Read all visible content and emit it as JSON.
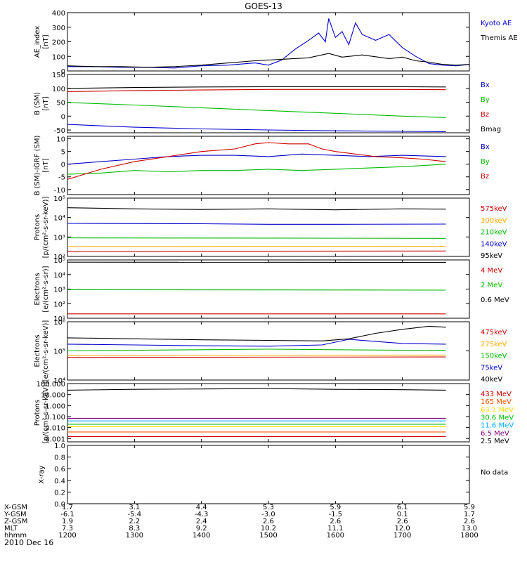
{
  "title": "GOES-13",
  "date": "2010 Dec 16",
  "x_ticks": [
    "1200",
    "1300",
    "1400",
    "1500",
    "1600",
    "1700",
    "1800"
  ],
  "x_range": [
    12.0,
    18.0
  ],
  "footer": {
    "rows": [
      {
        "label": "X-GSM",
        "values": [
          "1.7",
          "3.1",
          "4.4",
          "5.3",
          "5.9",
          "6.1",
          "5.9"
        ]
      },
      {
        "label": "Y-GSM",
        "values": [
          "-6.1",
          "-5.4",
          "-4.3",
          "-3.0",
          "-1.5",
          "0.1",
          "1.7"
        ]
      },
      {
        "label": "Z-GSM",
        "values": [
          "1.9",
          "2.2",
          "2.4",
          "2.6",
          "2.6",
          "2.6",
          "2.6"
        ]
      },
      {
        "label": "MLT",
        "values": [
          "7.3",
          "8.3",
          "9.2",
          "10.2",
          "11.1",
          "12.0",
          "13.0"
        ]
      },
      {
        "label": "hhmm",
        "values": [
          "1200",
          "1300",
          "1400",
          "1500",
          "1600",
          "1700",
          "1800"
        ]
      }
    ]
  },
  "panels": [
    {
      "ylabel": [
        "AE_index",
        "[nT]"
      ],
      "yscale": "linear",
      "ylim": [
        0,
        400
      ],
      "yticks": [
        "0",
        "100",
        "200",
        "300",
        "400"
      ],
      "legend": [
        {
          "text": "Kyoto AE",
          "color": "#0000cc"
        },
        {
          "text": "Themis AE",
          "color": "#000000"
        }
      ]
    },
    {
      "ylabel": [
        "B (SM)",
        "[nT]"
      ],
      "yscale": "linear",
      "ylim": [
        -60,
        150
      ],
      "yticks": [
        "-50",
        "0",
        "50",
        "100",
        "150"
      ],
      "legend": [
        {
          "text": "Bx",
          "color": "#0000cc"
        },
        {
          "text": "By",
          "color": "#00bb00"
        },
        {
          "text": "Bz",
          "color": "#cc0000"
        },
        {
          "text": "Bmag",
          "color": "#000000"
        }
      ]
    },
    {
      "ylabel": [
        "B (SM)-IGRF (SM)",
        "[nT]"
      ],
      "yscale": "linear",
      "ylim": [
        -12,
        11
      ],
      "yticks": [
        "-10",
        "-5",
        "0",
        "5",
        "10"
      ],
      "legend": [
        {
          "text": "Bx",
          "color": "#0000cc"
        },
        {
          "text": "By",
          "color": "#00bb00"
        },
        {
          "text": "Bz",
          "color": "#cc0000"
        }
      ]
    },
    {
      "ylabel": [
        "Protons",
        "[p/(cm²-s-sr-keV)]"
      ],
      "yscale": "log",
      "ylim": [
        100,
        100000
      ],
      "yticks": [
        "10²",
        "10³",
        "10⁴",
        "10⁵"
      ],
      "legend": [
        {
          "text": "575keV",
          "color": "#cc0000"
        },
        {
          "text": "300keV",
          "color": "#ffaa00"
        },
        {
          "text": "210keV",
          "color": "#00bb00"
        },
        {
          "text": "140keV",
          "color": "#0000cc"
        },
        {
          "text": "95keV",
          "color": "#000000"
        }
      ]
    },
    {
      "ylabel": [
        "Electrons",
        "[e/(cm²-s-sr)]"
      ],
      "yscale": "log",
      "ylim": [
        10,
        100000
      ],
      "yticks": [
        "10¹",
        "10²",
        "10³",
        "10⁴",
        "10⁵"
      ],
      "legend": [
        {
          "text": "4 MeV",
          "color": "#cc0000"
        },
        {
          "text": "2 MeV",
          "color": "#00bb00"
        },
        {
          "text": "0.6 MeV",
          "color": "#000000"
        }
      ]
    },
    {
      "ylabel": [
        "Electrons",
        "[e/(cm²-s-sr-keV)]"
      ],
      "yscale": "log",
      "ylim": [
        10000,
        1000000
      ],
      "yticks": [
        "10⁴",
        "10⁵",
        "10⁶"
      ],
      "legend": [
        {
          "text": "475keV",
          "color": "#cc0000"
        },
        {
          "text": "275keV",
          "color": "#ffaa00"
        },
        {
          "text": "150keV",
          "color": "#00bb00"
        },
        {
          "text": "75keV",
          "color": "#0000cc"
        },
        {
          "text": "40keV",
          "color": "#000000"
        }
      ]
    },
    {
      "ylabel": [
        "Protons",
        "[p/(cm²-s-sr-keV)]"
      ],
      "yscale": "log",
      "ylim": [
        0.0005,
        100
      ],
      "yticks": [
        "0.001",
        "0.010",
        "0.100",
        "1.000",
        "10.000",
        "100.000"
      ],
      "legend": [
        {
          "text": "433 MeV",
          "color": "#cc0000"
        },
        {
          "text": "165 MeV",
          "color": "#ff5500"
        },
        {
          "text": "63.1 MeV",
          "color": "#ffdd00"
        },
        {
          "text": "30.6 MeV",
          "color": "#00bb00"
        },
        {
          "text": "11.6 MeV",
          "color": "#00aaff"
        },
        {
          "text": "6.5 MeV",
          "color": "#770077"
        },
        {
          "text": "2.5 MeV",
          "color": "#000000"
        }
      ]
    },
    {
      "ylabel": [
        "X-ray",
        ""
      ],
      "yscale": "linear",
      "ylim": [
        0,
        1
      ],
      "yticks": [
        "0.0",
        "0.2",
        "0.4",
        "0.6",
        "0.8",
        "1.0"
      ],
      "legend": [
        {
          "text": "No data",
          "color": "#000000"
        }
      ]
    }
  ],
  "chart_data": [
    {
      "type": "line",
      "title": "GOES-13",
      "ylabel": "AE_index [nT]",
      "xlim": [
        12.0,
        18.0
      ],
      "ylim": [
        0,
        400
      ],
      "series": [
        {
          "name": "Kyoto AE",
          "color": "#0000cc",
          "x": [
            12.0,
            12.4,
            12.8,
            13.2,
            13.6,
            14.0,
            14.4,
            14.8,
            15.0,
            15.2,
            15.4,
            15.6,
            15.75,
            15.85,
            15.9,
            16.0,
            16.1,
            16.2,
            16.3,
            16.4,
            16.6,
            16.8,
            17.0,
            17.2,
            17.4,
            17.6,
            17.8,
            18.0
          ],
          "y": [
            30,
            30,
            25,
            25,
            20,
            35,
            40,
            55,
            40,
            75,
            150,
            210,
            260,
            200,
            360,
            230,
            270,
            180,
            330,
            250,
            210,
            250,
            160,
            100,
            50,
            40,
            35,
            45
          ]
        },
        {
          "name": "Themis AE",
          "color": "#000000",
          "x": [
            12.0,
            12.4,
            12.8,
            13.2,
            13.6,
            14.0,
            14.4,
            14.8,
            15.2,
            15.6,
            15.9,
            16.1,
            16.4,
            16.8,
            17.0,
            17.2,
            17.4,
            17.6,
            17.8,
            18.0
          ],
          "y": [
            35,
            30,
            30,
            25,
            30,
            40,
            55,
            70,
            80,
            90,
            120,
            95,
            110,
            85,
            95,
            70,
            60,
            45,
            40,
            45
          ]
        }
      ]
    },
    {
      "type": "line",
      "ylabel": "B (SM) [nT]",
      "xlim": [
        12.0,
        18.0
      ],
      "ylim": [
        -60,
        150
      ],
      "series": [
        {
          "name": "Bx",
          "color": "#0000cc",
          "x": [
            12.0,
            13.0,
            14.0,
            15.0,
            16.0,
            17.0,
            17.65
          ],
          "y": [
            -30,
            -40,
            -46,
            -50,
            -53,
            -55,
            -56
          ]
        },
        {
          "name": "By",
          "color": "#00bb00",
          "x": [
            12.0,
            13.0,
            14.0,
            15.0,
            16.0,
            17.0,
            17.65
          ],
          "y": [
            49,
            40,
            30,
            20,
            10,
            0,
            -5
          ]
        },
        {
          "name": "Bz",
          "color": "#cc0000",
          "x": [
            12.0,
            13.0,
            14.0,
            15.0,
            16.0,
            17.0,
            17.65
          ],
          "y": [
            88,
            92,
            94,
            96,
            96,
            96,
            95
          ]
        },
        {
          "name": "Bmag",
          "color": "#000000",
          "x": [
            12.0,
            13.0,
            14.0,
            15.0,
            16.0,
            17.0,
            17.65
          ],
          "y": [
            100,
            103,
            105,
            106,
            106,
            106,
            105
          ]
        }
      ]
    },
    {
      "type": "line",
      "ylabel": "B (SM)-IGRF (SM) [nT]",
      "xlim": [
        12.0,
        18.0
      ],
      "ylim": [
        -12,
        11
      ],
      "series": [
        {
          "name": "Bx",
          "color": "#0000cc",
          "x": [
            12.0,
            12.5,
            13.0,
            13.5,
            14.0,
            14.5,
            15.0,
            15.5,
            16.0,
            16.5,
            17.0,
            17.65
          ],
          "y": [
            0,
            1,
            2,
            3,
            3.5,
            3.5,
            3,
            4,
            3.5,
            3,
            3.5,
            3
          ]
        },
        {
          "name": "By",
          "color": "#00bb00",
          "x": [
            12.0,
            12.5,
            13.0,
            13.5,
            14.0,
            14.5,
            15.0,
            15.5,
            16.0,
            16.5,
            17.0,
            17.65
          ],
          "y": [
            -4,
            -3.5,
            -2.5,
            -3,
            -2.5,
            -2.5,
            -2,
            -2.5,
            -2,
            -1.5,
            -1,
            0
          ]
        },
        {
          "name": "Bz",
          "color": "#cc0000",
          "x": [
            12.0,
            12.5,
            13.0,
            13.5,
            14.0,
            14.5,
            14.8,
            15.0,
            15.3,
            15.6,
            15.8,
            16.0,
            16.3,
            16.6,
            17.0,
            17.3,
            17.65
          ],
          "y": [
            -6,
            -2,
            1,
            3,
            5,
            6,
            8,
            8.5,
            8,
            8,
            6,
            5,
            4,
            3,
            2.5,
            2,
            1
          ]
        }
      ]
    },
    {
      "type": "line",
      "ylabel": "Protons [p/(cm2-s-sr-keV)]",
      "yscale": "log",
      "xlim": [
        12.0,
        18.0
      ],
      "ylim": [
        100,
        100000
      ],
      "series": [
        {
          "name": "575keV",
          "color": "#cc0000",
          "x": [
            12.0,
            17.65
          ],
          "y": [
            180,
            190
          ]
        },
        {
          "name": "300keV",
          "color": "#ffaa00",
          "x": [
            12.0,
            17.65
          ],
          "y": [
            320,
            330
          ]
        },
        {
          "name": "210keV",
          "color": "#00bb00",
          "x": [
            12.0,
            17.65
          ],
          "y": [
            900,
            850
          ]
        },
        {
          "name": "140keV",
          "color": "#0000cc",
          "x": [
            12.0,
            14.0,
            15.0,
            16.0,
            17.65
          ],
          "y": [
            5000,
            4800,
            4500,
            4500,
            4600
          ]
        },
        {
          "name": "95keV",
          "color": "#000000",
          "x": [
            12.0,
            13.0,
            14.0,
            15.0,
            16.0,
            17.0,
            17.65
          ],
          "y": [
            32000,
            28000,
            26000,
            28000,
            25000,
            28000,
            27000
          ]
        }
      ]
    },
    {
      "type": "line",
      "ylabel": "Electrons [e/(cm2-s-sr)]",
      "yscale": "log",
      "xlim": [
        12.0,
        18.0
      ],
      "ylim": [
        10,
        100000
      ],
      "series": [
        {
          "name": "4 MeV",
          "color": "#cc0000",
          "x": [
            12.0,
            17.65
          ],
          "y": [
            20,
            20
          ]
        },
        {
          "name": "2 MeV",
          "color": "#00bb00",
          "x": [
            12.0,
            17.65
          ],
          "y": [
            900,
            850
          ]
        },
        {
          "name": "0.6 MeV",
          "color": "#000000",
          "x": [
            12.0,
            17.65
          ],
          "y": [
            70000,
            68000
          ]
        }
      ]
    },
    {
      "type": "line",
      "ylabel": "Electrons [e/(cm2-s-sr-keV)]",
      "yscale": "log",
      "xlim": [
        12.0,
        18.0
      ],
      "ylim": [
        10000,
        1000000
      ],
      "series": [
        {
          "name": "475keV",
          "color": "#cc0000",
          "x": [
            12.0,
            17.65
          ],
          "y": [
            60000,
            62000
          ]
        },
        {
          "name": "275keV",
          "color": "#ffaa00",
          "x": [
            12.0,
            17.65
          ],
          "y": [
            70000,
            72000
          ]
        },
        {
          "name": "150keV",
          "color": "#00bb00",
          "x": [
            12.0,
            14.0,
            15.0,
            16.0,
            17.0,
            17.65
          ],
          "y": [
            100000,
            110000,
            115000,
            110000,
            105000,
            105000
          ]
        },
        {
          "name": "75keV",
          "color": "#0000cc",
          "x": [
            12.0,
            13.0,
            14.0,
            15.0,
            15.8,
            16.2,
            17.0,
            17.65
          ],
          "y": [
            170000,
            160000,
            150000,
            145000,
            160000,
            250000,
            180000,
            170000
          ]
        },
        {
          "name": "40keV",
          "color": "#000000",
          "x": [
            12.0,
            13.0,
            14.0,
            15.0,
            15.8,
            16.2,
            16.6,
            17.0,
            17.4,
            17.65
          ],
          "y": [
            280000,
            260000,
            240000,
            230000,
            220000,
            260000,
            400000,
            550000,
            700000,
            650000
          ]
        }
      ]
    },
    {
      "type": "line",
      "ylabel": "Protons [p/(cm2-s-sr-keV)]",
      "yscale": "log",
      "xlim": [
        12.0,
        18.0
      ],
      "ylim": [
        0.0005,
        100
      ],
      "series": [
        {
          "name": "433 MeV",
          "color": "#cc0000",
          "x": [
            12.0,
            17.65
          ],
          "y": [
            0.0015,
            0.0015
          ]
        },
        {
          "name": "165 MeV",
          "color": "#ff5500",
          "x": [
            12.0,
            17.65
          ],
          "y": [
            0.004,
            0.004
          ]
        },
        {
          "name": "63.1 MeV",
          "color": "#ffdd00",
          "x": [
            12.0,
            17.65
          ],
          "y": [
            0.012,
            0.012
          ]
        },
        {
          "name": "30.6 MeV",
          "color": "#00bb00",
          "x": [
            12.0,
            17.65
          ],
          "y": [
            0.02,
            0.02
          ]
        },
        {
          "name": "11.6 MeV",
          "color": "#00aaff",
          "x": [
            12.0,
            17.65
          ],
          "y": [
            0.04,
            0.04
          ]
        },
        {
          "name": "6.5 MeV",
          "color": "#770077",
          "x": [
            12.0,
            17.65
          ],
          "y": [
            0.07,
            0.07
          ]
        },
        {
          "name": "2.5 MeV",
          "color": "#000000",
          "x": [
            12.0,
            13.0,
            14.0,
            15.0,
            16.0,
            17.0,
            17.65
          ],
          "y": [
            25,
            30,
            32,
            35,
            30,
            28,
            25
          ]
        }
      ]
    },
    {
      "type": "line",
      "ylabel": "X-ray",
      "xlim": [
        12.0,
        18.0
      ],
      "ylim": [
        0,
        1
      ],
      "series": []
    }
  ]
}
